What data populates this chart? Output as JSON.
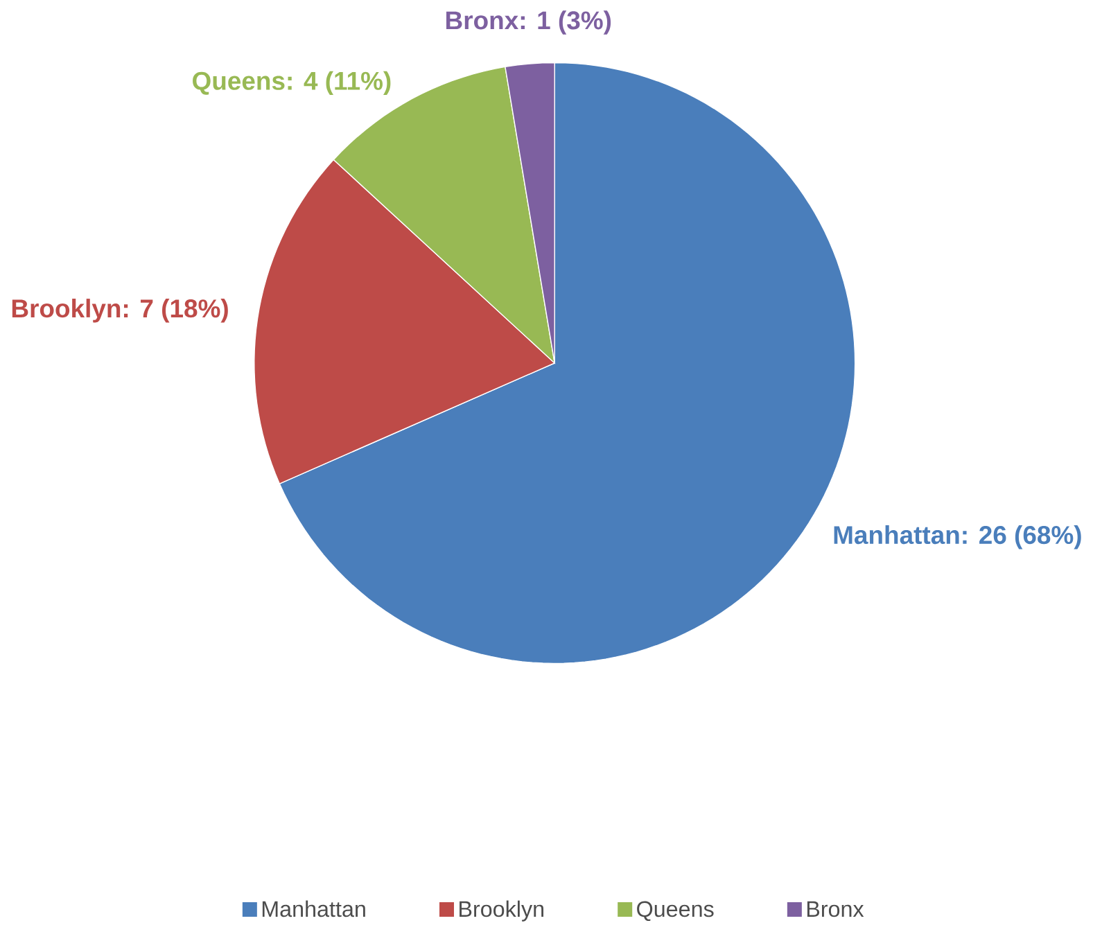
{
  "chart_data": {
    "type": "pie",
    "categories": [
      "Manhattan",
      "Brooklyn",
      "Queens",
      "Bronx"
    ],
    "values": [
      26,
      7,
      4,
      1
    ],
    "colors": [
      "#4a7ebb",
      "#be4b48",
      "#98b954",
      "#7d60a0"
    ],
    "value_labels": [
      "Manhattan: 26 (68%)",
      "Brooklyn: 7 (18%)",
      "Queens: 4 (11%)",
      "Bronx: 1 (3%)"
    ],
    "legend": "bottom"
  }
}
